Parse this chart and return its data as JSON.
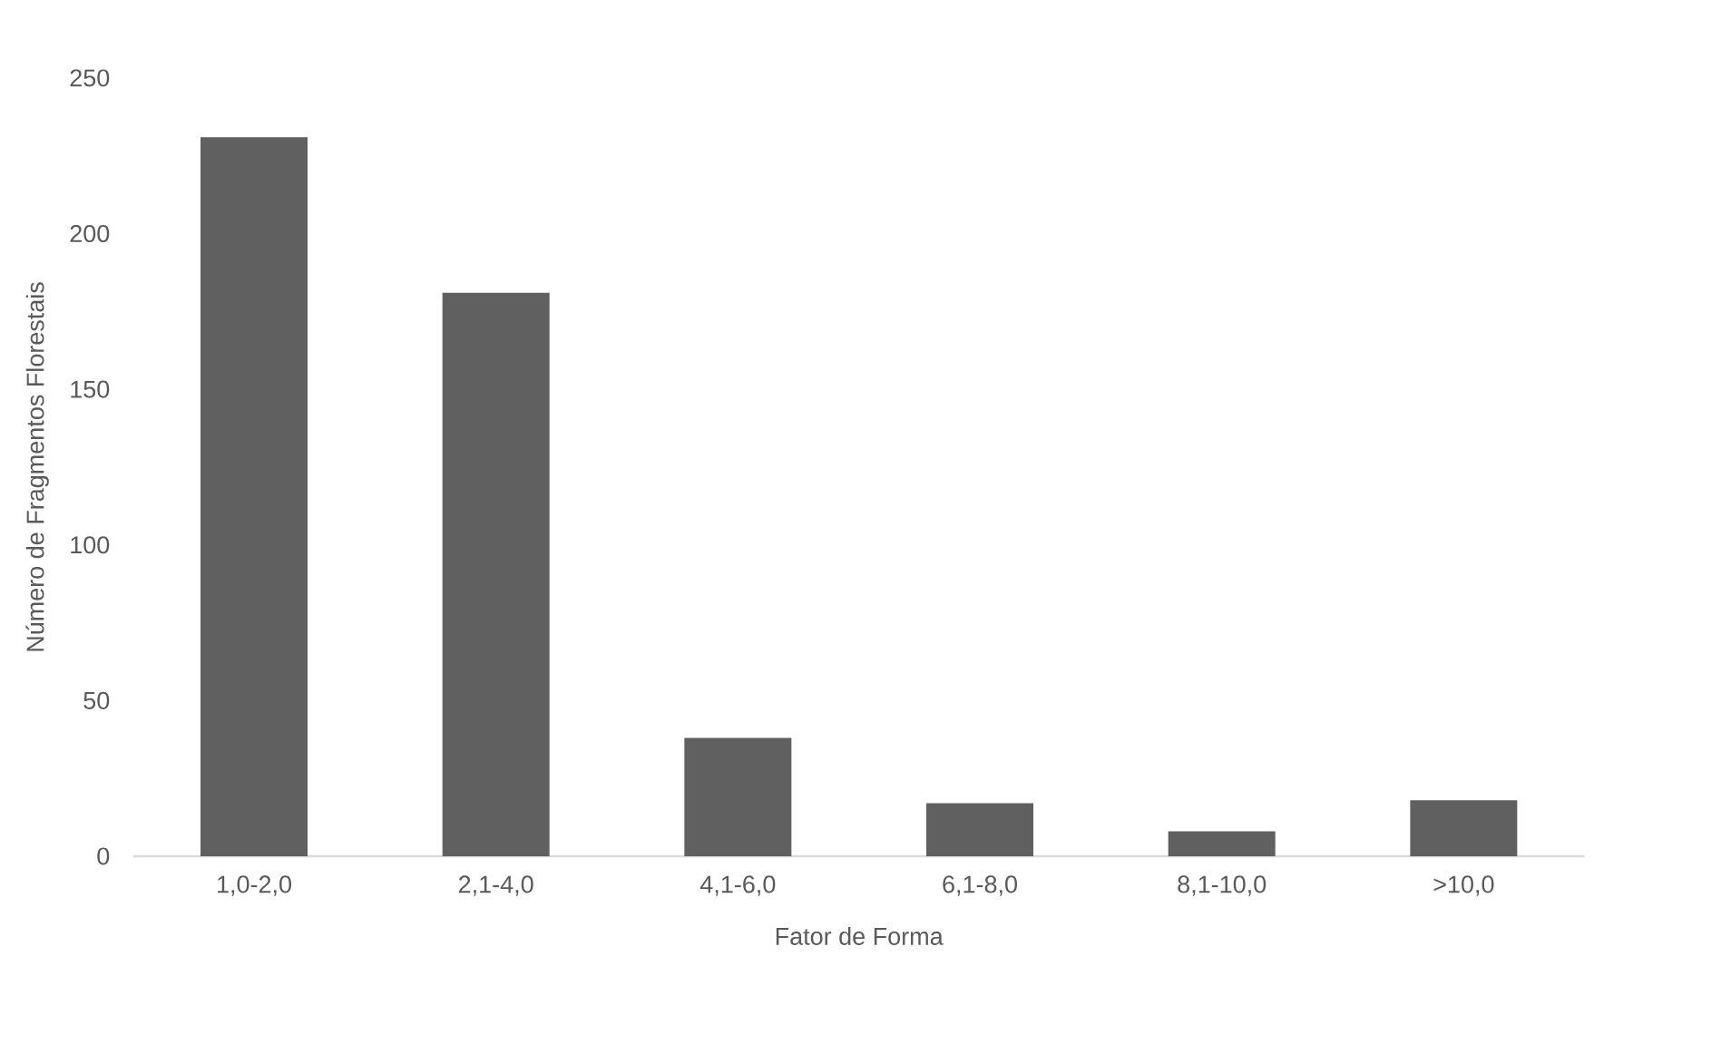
{
  "chart_data": {
    "type": "bar",
    "xlabel": "Fator de Forma",
    "ylabel": "Número de Fragmentos Florestais",
    "categories": [
      "1,0-2,0",
      "2,1-4,0",
      "4,1-6,0",
      "6,1-8,0",
      "8,1-10,0",
      ">10,0"
    ],
    "values": [
      231,
      181,
      38,
      17,
      8,
      18
    ],
    "color": "#606060",
    "ylim": [
      0,
      250
    ],
    "yticks": [
      0,
      50,
      100,
      150,
      200,
      250
    ]
  }
}
